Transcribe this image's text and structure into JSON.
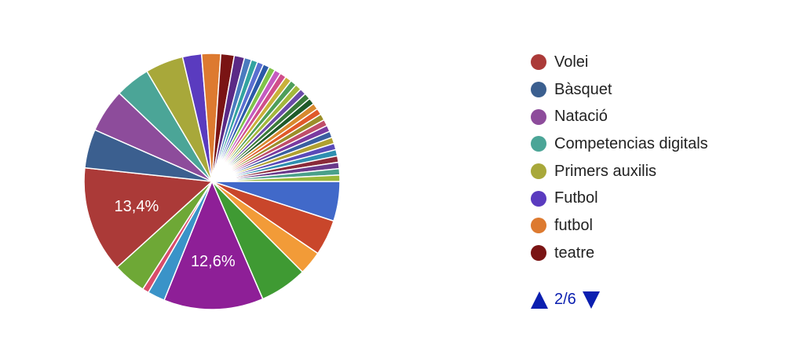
{
  "chart_data": {
    "type": "pie",
    "legend": [
      "Volei",
      "Bàsquet",
      "Natació",
      "Competencias digitals",
      "Primers auxilis",
      "Futbol",
      "futbol",
      "teatre"
    ],
    "legend_colors": [
      "#ab3a38",
      "#3b5f8f",
      "#8d4c9b",
      "#4ba597",
      "#a8a83a",
      "#5a3bbf",
      "#dd7a30",
      "#7a1414"
    ],
    "pager": "2/6",
    "slices": [
      {
        "value": 5.0,
        "color": "#4169c9"
      },
      {
        "value": 4.5,
        "color": "#c9462b"
      },
      {
        "value": 3.0,
        "color": "#f29b38"
      },
      {
        "value": 6.0,
        "color": "#3f9a33"
      },
      {
        "value": 12.6,
        "color": "#8e1f97",
        "label": "12,6%"
      },
      {
        "value": 2.2,
        "color": "#3a93c8"
      },
      {
        "value": 0.8,
        "color": "#d94c6a"
      },
      {
        "value": 4.2,
        "color": "#6ea836"
      },
      {
        "value": 13.4,
        "color": "#ab3a38",
        "label": "13,4%"
      },
      {
        "value": 4.9,
        "color": "#3b5f8f"
      },
      {
        "value": 5.5,
        "color": "#8d4c9b"
      },
      {
        "value": 4.4,
        "color": "#4ba597"
      },
      {
        "value": 4.8,
        "color": "#a8a83a"
      },
      {
        "value": 2.4,
        "color": "#5a3bbf"
      },
      {
        "value": 2.4,
        "color": "#dd7a30"
      },
      {
        "value": 1.7,
        "color": "#7a1414"
      },
      {
        "value": 1.3,
        "color": "#5b2a86"
      },
      {
        "value": 0.9,
        "color": "#4a7bbf"
      },
      {
        "value": 0.8,
        "color": "#33a3a0"
      },
      {
        "value": 0.8,
        "color": "#5a6fd0"
      },
      {
        "value": 0.8,
        "color": "#2b5aa8"
      },
      {
        "value": 0.8,
        "color": "#7fc34a"
      },
      {
        "value": 0.8,
        "color": "#c45bc0"
      },
      {
        "value": 0.8,
        "color": "#d04e8a"
      },
      {
        "value": 0.8,
        "color": "#c9b13a"
      },
      {
        "value": 0.8,
        "color": "#4e9e5a"
      },
      {
        "value": 0.8,
        "color": "#a3b83c"
      },
      {
        "value": 0.8,
        "color": "#6a4aa8"
      },
      {
        "value": 0.8,
        "color": "#3a7a3a"
      },
      {
        "value": 0.8,
        "color": "#1f5a2a"
      },
      {
        "value": 0.8,
        "color": "#d8892f"
      },
      {
        "value": 0.8,
        "color": "#e05a2b"
      },
      {
        "value": 0.8,
        "color": "#9c8f2a"
      },
      {
        "value": 0.8,
        "color": "#c04e6a"
      },
      {
        "value": 0.8,
        "color": "#7a3aa0"
      },
      {
        "value": 0.8,
        "color": "#3a5fa0"
      },
      {
        "value": 0.8,
        "color": "#b0a030"
      },
      {
        "value": 0.8,
        "color": "#5a4ab8"
      },
      {
        "value": 0.8,
        "color": "#2f8fb0"
      },
      {
        "value": 0.8,
        "color": "#8a2a3a"
      },
      {
        "value": 0.8,
        "color": "#6a3a8a"
      },
      {
        "value": 0.8,
        "color": "#4aa08a"
      },
      {
        "value": 0.8,
        "color": "#9ab83a"
      }
    ]
  }
}
